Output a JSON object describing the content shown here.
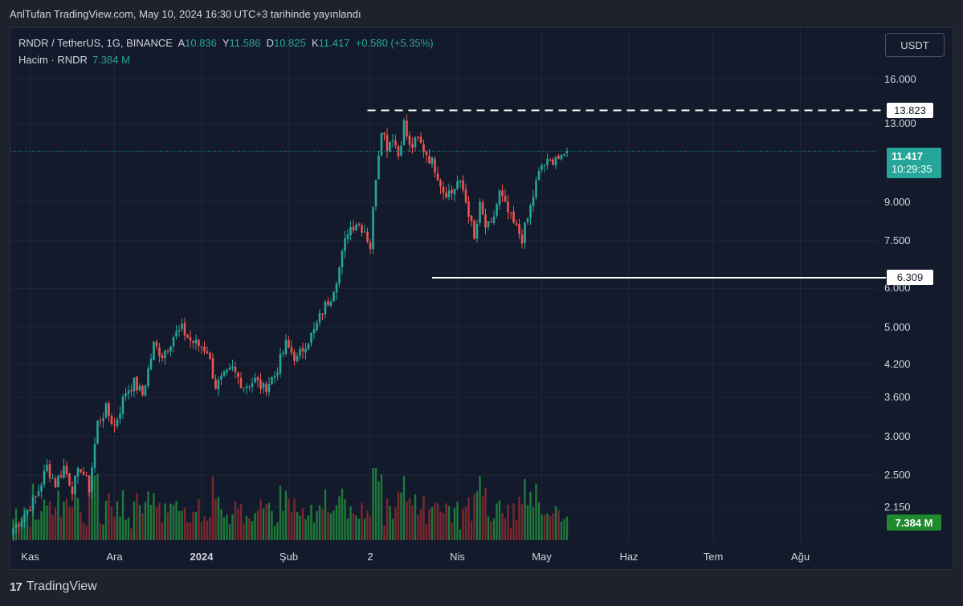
{
  "header": {
    "publish_text": "AnlTufan TradingView.com, May 10, 2024 16:30 UTC+3 tarihinde yayınlandı"
  },
  "legend": {
    "symbol": "RNDR / TetherUS, 1G, BINANCE",
    "open_label": "A",
    "open": "10.836",
    "high_label": "Y",
    "high": "11.586",
    "low_label": "D",
    "low": "10.825",
    "close_label": "K",
    "close": "11.417",
    "change": "+0.580 (+5.35%)",
    "volume_label": "Hacim · RNDR",
    "volume": "7.384 M"
  },
  "currency_button": "USDT",
  "footer": {
    "brand": "TradingView"
  },
  "chart_data": {
    "type": "candlestick",
    "symbol": "RNDR/USDT",
    "interval": "1D",
    "exchange": "BINANCE",
    "y_scale": "log",
    "ylim": [
      1.9,
      19.0
    ],
    "y_ticks": [
      "16.000",
      "13.000",
      "9.000",
      "7.500",
      "6.000",
      "5.000",
      "4.200",
      "3.600",
      "3.000",
      "2.500",
      "2.150"
    ],
    "x_ticks": [
      "Kas",
      "Ara",
      "2024",
      "Şub",
      "2",
      "Nis",
      "May",
      "Haz",
      "Tem",
      "Ağu"
    ],
    "x_tick_days": [
      6,
      36,
      67,
      98,
      127,
      158,
      188,
      219,
      249,
      280
    ],
    "last_candle_day": 197,
    "horizontal_lines": [
      {
        "value": 13.823,
        "label": "13.823",
        "style": "dashed",
        "start_day": 126
      },
      {
        "value": 6.309,
        "label": "6.309",
        "style": "solid",
        "start_day": 149
      }
    ],
    "last_price": "11.417",
    "countdown": "10:29:35",
    "last_volume": "7.384 M",
    "colors": {
      "up": "#26a69a",
      "down": "#ef5350",
      "vol_up": "#1f7a3a",
      "vol_down": "#7a2a2e"
    },
    "anchors": [
      [
        0,
        1.95
      ],
      [
        3,
        2.05
      ],
      [
        8,
        2.25
      ],
      [
        12,
        2.6
      ],
      [
        15,
        2.4
      ],
      [
        18,
        2.6
      ],
      [
        21,
        2.35
      ],
      [
        24,
        2.6
      ],
      [
        27,
        2.35
      ],
      [
        30,
        3.2
      ],
      [
        33,
        3.4
      ],
      [
        36,
        3.15
      ],
      [
        40,
        3.7
      ],
      [
        43,
        3.85
      ],
      [
        46,
        3.65
      ],
      [
        50,
        4.6
      ],
      [
        53,
        4.4
      ],
      [
        57,
        4.8
      ],
      [
        60,
        4.95
      ],
      [
        63,
        4.7
      ],
      [
        66,
        4.6
      ],
      [
        69,
        4.5
      ],
      [
        72,
        3.8
      ],
      [
        75,
        3.95
      ],
      [
        78,
        4.1
      ],
      [
        82,
        3.8
      ],
      [
        86,
        3.9
      ],
      [
        89,
        3.75
      ],
      [
        93,
        4.0
      ],
      [
        97,
        4.6
      ],
      [
        101,
        4.3
      ],
      [
        104,
        4.65
      ],
      [
        107,
        4.9
      ],
      [
        110,
        5.4
      ],
      [
        113,
        5.8
      ],
      [
        116,
        6.6
      ],
      [
        119,
        7.9
      ],
      [
        122,
        8.2
      ],
      [
        125,
        7.9
      ],
      [
        127,
        7.3
      ],
      [
        129,
        10.2
      ],
      [
        131,
        12.8
      ],
      [
        133,
        11.7
      ],
      [
        135,
        12.3
      ],
      [
        137,
        11.2
      ],
      [
        139,
        13.0
      ],
      [
        141,
        11.6
      ],
      [
        144,
        12.0
      ],
      [
        147,
        11.3
      ],
      [
        150,
        10.6
      ],
      [
        153,
        9.5
      ],
      [
        156,
        9.4
      ],
      [
        158,
        9.9
      ],
      [
        160,
        9.5
      ],
      [
        162,
        8.6
      ],
      [
        164,
        7.5
      ],
      [
        166,
        8.8
      ],
      [
        168,
        8.0
      ],
      [
        170,
        8.0
      ],
      [
        173,
        9.4
      ],
      [
        175,
        8.8
      ],
      [
        178,
        8.1
      ],
      [
        181,
        7.6
      ],
      [
        183,
        8.3
      ],
      [
        186,
        9.8
      ],
      [
        188,
        10.7
      ],
      [
        191,
        10.8
      ],
      [
        193,
        11.2
      ],
      [
        195,
        10.9
      ],
      [
        197,
        11.417
      ]
    ]
  }
}
